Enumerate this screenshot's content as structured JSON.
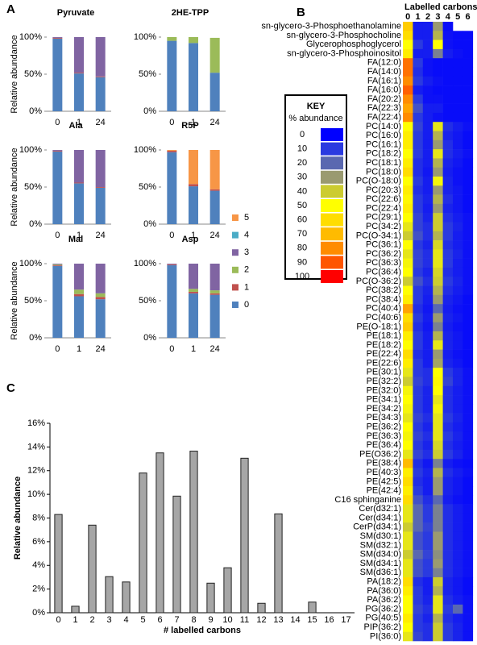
{
  "panel_labels": [
    "A",
    "B",
    "C"
  ],
  "chart_data": [
    {
      "type": "stacked-bar",
      "title": "Pyruvate",
      "ylabel": "Relative abundance",
      "categories": [
        "0",
        "1",
        "24"
      ],
      "ylim": [
        0,
        100
      ],
      "yticks": [
        {
          "value": 0,
          "label": "0%"
        },
        {
          "value": 50,
          "label": "50%"
        },
        {
          "value": 100,
          "label": "100%"
        }
      ],
      "series": [
        {
          "color": "#4f81bd",
          "values": [
            98,
            51,
            46
          ]
        },
        {
          "color": "#c0504d",
          "values": [
            1,
            1,
            1
          ]
        },
        {
          "color": "#9bbb59",
          "values": [
            0,
            0,
            0
          ]
        },
        {
          "color": "#8064a2",
          "values": [
            1,
            48,
            53
          ]
        },
        {
          "color": "#4bacc6",
          "values": [
            0,
            0,
            0
          ]
        },
        {
          "color": "#f79646",
          "values": [
            0,
            0,
            0
          ]
        }
      ]
    },
    {
      "type": "stacked-bar",
      "title": "2HE-TPP",
      "categories": [
        "0",
        "1",
        "24"
      ],
      "ylim": [
        0,
        100
      ],
      "yticks": [
        {
          "value": 0,
          "label": "0%"
        },
        {
          "value": 50,
          "label": "50%"
        },
        {
          "value": 100,
          "label": "100%"
        }
      ],
      "series": [
        {
          "color": "#4f81bd",
          "values": [
            95,
            92,
            52
          ]
        },
        {
          "color": "#c0504d",
          "values": [
            0,
            0,
            0
          ]
        },
        {
          "color": "#9bbb59",
          "values": [
            5,
            8,
            47
          ]
        },
        {
          "color": "#8064a2",
          "values": [
            0,
            0,
            0
          ]
        },
        {
          "color": "#4bacc6",
          "values": [
            0,
            0,
            0
          ]
        },
        {
          "color": "#f79646",
          "values": [
            0,
            0,
            0
          ]
        }
      ]
    },
    {
      "type": "stacked-bar",
      "title": "Ala",
      "ylabel": "Relative abundance",
      "categories": [
        "0",
        "1",
        "24"
      ],
      "ylim": [
        0,
        100
      ],
      "yticks": [
        {
          "value": 0,
          "label": "0%"
        },
        {
          "value": 50,
          "label": "50%"
        },
        {
          "value": 100,
          "label": "100%"
        }
      ],
      "series": [
        {
          "color": "#4f81bd",
          "values": [
            98,
            55,
            49
          ]
        },
        {
          "color": "#c0504d",
          "values": [
            1,
            1,
            1
          ]
        },
        {
          "color": "#9bbb59",
          "values": [
            0,
            0,
            0
          ]
        },
        {
          "color": "#8064a2",
          "values": [
            1,
            44,
            50
          ]
        },
        {
          "color": "#4bacc6",
          "values": [
            0,
            0,
            0
          ]
        },
        {
          "color": "#f79646",
          "values": [
            0,
            0,
            0
          ]
        }
      ]
    },
    {
      "type": "stacked-bar",
      "title": "R5P",
      "legend": "right",
      "categories": [
        "0",
        "1",
        "24"
      ],
      "ylim": [
        0,
        100
      ],
      "yticks": [
        {
          "value": 0,
          "label": "0%"
        },
        {
          "value": 50,
          "label": "50%"
        },
        {
          "value": 100,
          "label": "100%"
        }
      ],
      "series": [
        {
          "name": "0",
          "color": "#4f81bd",
          "values": [
            97,
            51,
            45
          ]
        },
        {
          "name": "1",
          "color": "#c0504d",
          "values": [
            2,
            3,
            2
          ]
        },
        {
          "name": "2",
          "color": "#9bbb59",
          "values": [
            0,
            0,
            0
          ]
        },
        {
          "name": "3",
          "color": "#8064a2",
          "values": [
            0,
            0,
            0
          ]
        },
        {
          "name": "4",
          "color": "#4bacc6",
          "values": [
            0,
            0,
            0
          ]
        },
        {
          "name": "5",
          "color": "#f79646",
          "values": [
            1,
            46,
            53
          ]
        }
      ]
    },
    {
      "type": "stacked-bar",
      "title": "Mal",
      "ylabel": "Relative abundance",
      "categories": [
        "0",
        "1",
        "24"
      ],
      "ylim": [
        0,
        100
      ],
      "yticks": [
        {
          "value": 0,
          "label": "0%"
        },
        {
          "value": 50,
          "label": "50%"
        },
        {
          "value": 100,
          "label": "100%"
        }
      ],
      "series": [
        {
          "color": "#4f81bd",
          "values": [
            97,
            56,
            52
          ]
        },
        {
          "color": "#c0504d",
          "values": [
            1,
            3,
            3
          ]
        },
        {
          "color": "#9bbb59",
          "values": [
            1,
            6,
            5
          ]
        },
        {
          "color": "#8064a2",
          "values": [
            1,
            35,
            40
          ]
        },
        {
          "color": "#4bacc6",
          "values": [
            0,
            0,
            0
          ]
        },
        {
          "color": "#f79646",
          "values": [
            0,
            0,
            0
          ]
        }
      ]
    },
    {
      "type": "stacked-bar",
      "title": "Asp",
      "categories": [
        "0",
        "1",
        "24"
      ],
      "ylim": [
        0,
        100
      ],
      "yticks": [
        {
          "value": 0,
          "label": "0%"
        },
        {
          "value": 50,
          "label": "50%"
        },
        {
          "value": 100,
          "label": "100%"
        }
      ],
      "series": [
        {
          "color": "#4f81bd",
          "values": [
            98,
            60,
            58
          ]
        },
        {
          "color": "#c0504d",
          "values": [
            1,
            2,
            2
          ]
        },
        {
          "color": "#9bbb59",
          "values": [
            0,
            4,
            4
          ]
        },
        {
          "color": "#8064a2",
          "values": [
            1,
            34,
            36
          ]
        },
        {
          "color": "#4bacc6",
          "values": [
            0,
            0,
            0
          ]
        },
        {
          "color": "#f79646",
          "values": [
            0,
            0,
            0
          ]
        }
      ]
    },
    {
      "type": "heatmap",
      "title": "Labelled carbons",
      "columns": [
        "0",
        "1",
        "2",
        "3",
        "4",
        "5",
        "6"
      ],
      "key": {
        "title": "KEY",
        "subtitle": "% abundance",
        "levels": [
          {
            "value": 0,
            "color": "#0000ff"
          },
          {
            "value": 10,
            "color": "#2a3ae0"
          },
          {
            "value": 20,
            "color": "#5a68b0"
          },
          {
            "value": 30,
            "color": "#9a9a70"
          },
          {
            "value": 40,
            "color": "#cccc30"
          },
          {
            "value": 50,
            "color": "#ffff00"
          },
          {
            "value": 60,
            "color": "#ffdd00"
          },
          {
            "value": 70,
            "color": "#ffbb00"
          },
          {
            "value": 80,
            "color": "#ff8c00"
          },
          {
            "value": 90,
            "color": "#ff5500"
          },
          {
            "value": 100,
            "color": "#ff0000"
          }
        ]
      },
      "rows": [
        "sn-glycero-3-Phosphoethanolamine",
        "sn-glycero-3-Phosphocholine",
        "Glycerophosphoglycerol",
        "sn-glycero-3-Phosphoinositol",
        "FA(12:0)",
        "FA(14:0)",
        "FA(16:1)",
        "FA(16:0)",
        "FA(20:2)",
        "FA(22:3)",
        "FA(22:4)",
        "PC(14:0)",
        "PC(16:0)",
        "PC(16:1)",
        "PC(18:2)",
        "PC(18:1)",
        "PC(18:0)",
        "PC(O-18:0)",
        "PC(20:3)",
        "PC(22:6)",
        "PC(22:4)",
        "PC(29:1)",
        "PC(34:2)",
        "PC(O-34:1)",
        "PC(36:1)",
        "PC(36:2)",
        "PC(36:3)",
        "PC(36:4)",
        "PC(O-36:2)",
        "PC(38:2)",
        "PC(38:4)",
        "PC(40:4)",
        "PC(40:6)",
        "PE(O-18:1)",
        "PE(18:1)",
        "PE(18:2)",
        "PE(22:4)",
        "PE(22:6)",
        "PE(30:1)",
        "PE(32:2)",
        "PE(32:0)",
        "PE(34:1)",
        "PE(34:2)",
        "PE(34:3)",
        "PE(36:2)",
        "PE(36:3)",
        "PE(36:4)",
        "PE(O36:2)",
        "PE(38:4)",
        "PE(40:3)",
        "PE(42:5)",
        "PE(42:4)",
        "C16 sphinganine",
        "Cer(d32:1)",
        "Cer(d34:1)",
        "CerP(d34:1)",
        "SM(d30:1)",
        "SM(d32:1)",
        "SM(d34:0)",
        "SM(d34:1)",
        "SM(d36:1)",
        "PA(18:2)",
        "PA(36:0)",
        "PA(36:2)",
        "PG(36:2)",
        "PG(40:5)",
        "PIP(36:2)",
        "PI(36:0)"
      ],
      "values": [
        [
          65,
          5,
          5,
          30,
          2,
          null,
          null
        ],
        [
          60,
          5,
          5,
          35,
          3,
          2,
          2
        ],
        [
          50,
          10,
          5,
          50,
          3,
          2,
          2
        ],
        [
          55,
          5,
          5,
          25,
          5,
          3,
          2
        ],
        [
          85,
          10,
          3,
          2,
          2,
          2,
          2
        ],
        [
          85,
          8,
          3,
          2,
          2,
          2,
          2
        ],
        [
          80,
          10,
          5,
          3,
          2,
          2,
          2
        ],
        [
          88,
          5,
          3,
          2,
          2,
          2,
          2
        ],
        [
          80,
          10,
          3,
          3,
          2,
          2,
          2
        ],
        [
          75,
          15,
          5,
          5,
          2,
          2,
          2
        ],
        [
          80,
          10,
          5,
          3,
          2,
          2,
          2
        ],
        [
          50,
          12,
          5,
          45,
          8,
          5,
          3
        ],
        [
          55,
          10,
          5,
          35,
          6,
          4,
          2
        ],
        [
          55,
          10,
          5,
          30,
          8,
          4,
          2
        ],
        [
          50,
          10,
          5,
          45,
          8,
          5,
          3
        ],
        [
          55,
          8,
          5,
          35,
          6,
          4,
          2
        ],
        [
          60,
          8,
          4,
          30,
          5,
          3,
          2
        ],
        [
          50,
          10,
          5,
          48,
          6,
          3,
          2
        ],
        [
          55,
          8,
          5,
          30,
          6,
          4,
          2
        ],
        [
          52,
          10,
          6,
          35,
          8,
          4,
          2
        ],
        [
          55,
          10,
          5,
          30,
          6,
          4,
          2
        ],
        [
          50,
          12,
          6,
          40,
          8,
          5,
          3
        ],
        [
          45,
          12,
          8,
          40,
          10,
          6,
          3
        ],
        [
          40,
          15,
          8,
          35,
          10,
          5,
          3
        ],
        [
          50,
          10,
          6,
          42,
          8,
          5,
          3
        ],
        [
          45,
          12,
          8,
          45,
          10,
          6,
          3
        ],
        [
          48,
          12,
          8,
          45,
          10,
          5,
          3
        ],
        [
          50,
          10,
          6,
          42,
          8,
          5,
          3
        ],
        [
          40,
          15,
          8,
          40,
          10,
          6,
          3
        ],
        [
          50,
          10,
          6,
          35,
          8,
          5,
          3
        ],
        [
          55,
          10,
          5,
          30,
          6,
          4,
          2
        ],
        [
          75,
          8,
          4,
          20,
          5,
          3,
          2
        ],
        [
          60,
          10,
          5,
          30,
          6,
          4,
          2
        ],
        [
          65,
          8,
          4,
          25,
          5,
          3,
          2
        ],
        [
          55,
          10,
          5,
          35,
          6,
          4,
          2
        ],
        [
          50,
          10,
          5,
          45,
          6,
          4,
          2
        ],
        [
          60,
          8,
          5,
          30,
          5,
          3,
          2
        ],
        [
          55,
          10,
          5,
          32,
          6,
          4,
          2
        ],
        [
          45,
          10,
          8,
          50,
          10,
          6,
          3
        ],
        [
          40,
          12,
          8,
          52,
          12,
          6,
          3
        ],
        [
          48,
          10,
          6,
          50,
          8,
          5,
          3
        ],
        [
          50,
          10,
          6,
          45,
          8,
          5,
          3
        ],
        [
          48,
          10,
          6,
          48,
          8,
          5,
          3
        ],
        [
          45,
          12,
          8,
          45,
          10,
          6,
          3
        ],
        [
          50,
          10,
          6,
          45,
          8,
          5,
          3
        ],
        [
          48,
          12,
          8,
          45,
          10,
          6,
          3
        ],
        [
          50,
          10,
          6,
          42,
          8,
          5,
          3
        ],
        [
          45,
          12,
          8,
          40,
          10,
          6,
          3
        ],
        [
          70,
          8,
          4,
          25,
          5,
          3,
          2
        ],
        [
          55,
          10,
          6,
          35,
          8,
          5,
          3
        ],
        [
          60,
          8,
          5,
          30,
          6,
          4,
          2
        ],
        [
          55,
          10,
          5,
          30,
          6,
          4,
          2
        ],
        [
          60,
          15,
          8,
          20,
          5,
          3,
          2
        ],
        [
          45,
          20,
          10,
          25,
          8,
          5,
          3
        ],
        [
          45,
          20,
          10,
          25,
          8,
          5,
          3
        ],
        [
          40,
          20,
          12,
          25,
          8,
          5,
          3
        ],
        [
          45,
          15,
          10,
          30,
          8,
          5,
          3
        ],
        [
          45,
          15,
          10,
          30,
          8,
          5,
          3
        ],
        [
          40,
          20,
          12,
          28,
          8,
          5,
          3
        ],
        [
          45,
          15,
          10,
          30,
          8,
          5,
          3
        ],
        [
          45,
          15,
          10,
          25,
          8,
          5,
          3
        ],
        [
          60,
          8,
          5,
          40,
          6,
          4,
          2
        ],
        [
          55,
          10,
          5,
          35,
          6,
          4,
          2
        ],
        [
          50,
          10,
          6,
          45,
          8,
          5,
          3
        ],
        [
          50,
          12,
          8,
          45,
          10,
          20,
          3
        ],
        [
          55,
          10,
          6,
          35,
          8,
          5,
          3
        ],
        [
          50,
          10,
          8,
          40,
          10,
          6,
          3
        ],
        [
          45,
          12,
          8,
          40,
          10,
          6,
          3
        ]
      ]
    },
    {
      "type": "bar",
      "ylabel": "Relative abundance",
      "xlabel": "# labelled carbons",
      "color": "#a6a6a6",
      "categories": [
        "0",
        "1",
        "2",
        "3",
        "4",
        "5",
        "6",
        "7",
        "8",
        "9",
        "10",
        "11",
        "12",
        "13",
        "14",
        "15",
        "16",
        "17"
      ],
      "values": [
        8.3,
        0.55,
        7.4,
        3.05,
        2.6,
        11.8,
        13.5,
        9.85,
        13.65,
        2.5,
        3.8,
        13.05,
        0.8,
        8.35,
        null,
        0.9,
        null,
        null
      ],
      "ylim": [
        0,
        16
      ],
      "yticks": [
        {
          "value": 0,
          "label": "0%"
        },
        {
          "value": 2,
          "label": "2%"
        },
        {
          "value": 4,
          "label": "4%"
        },
        {
          "value": 6,
          "label": "6%"
        },
        {
          "value": 8,
          "label": "8%"
        },
        {
          "value": 10,
          "label": "10%"
        },
        {
          "value": 12,
          "label": "12%"
        },
        {
          "value": 14,
          "label": "14%"
        },
        {
          "value": 16,
          "label": "16%"
        }
      ]
    }
  ]
}
